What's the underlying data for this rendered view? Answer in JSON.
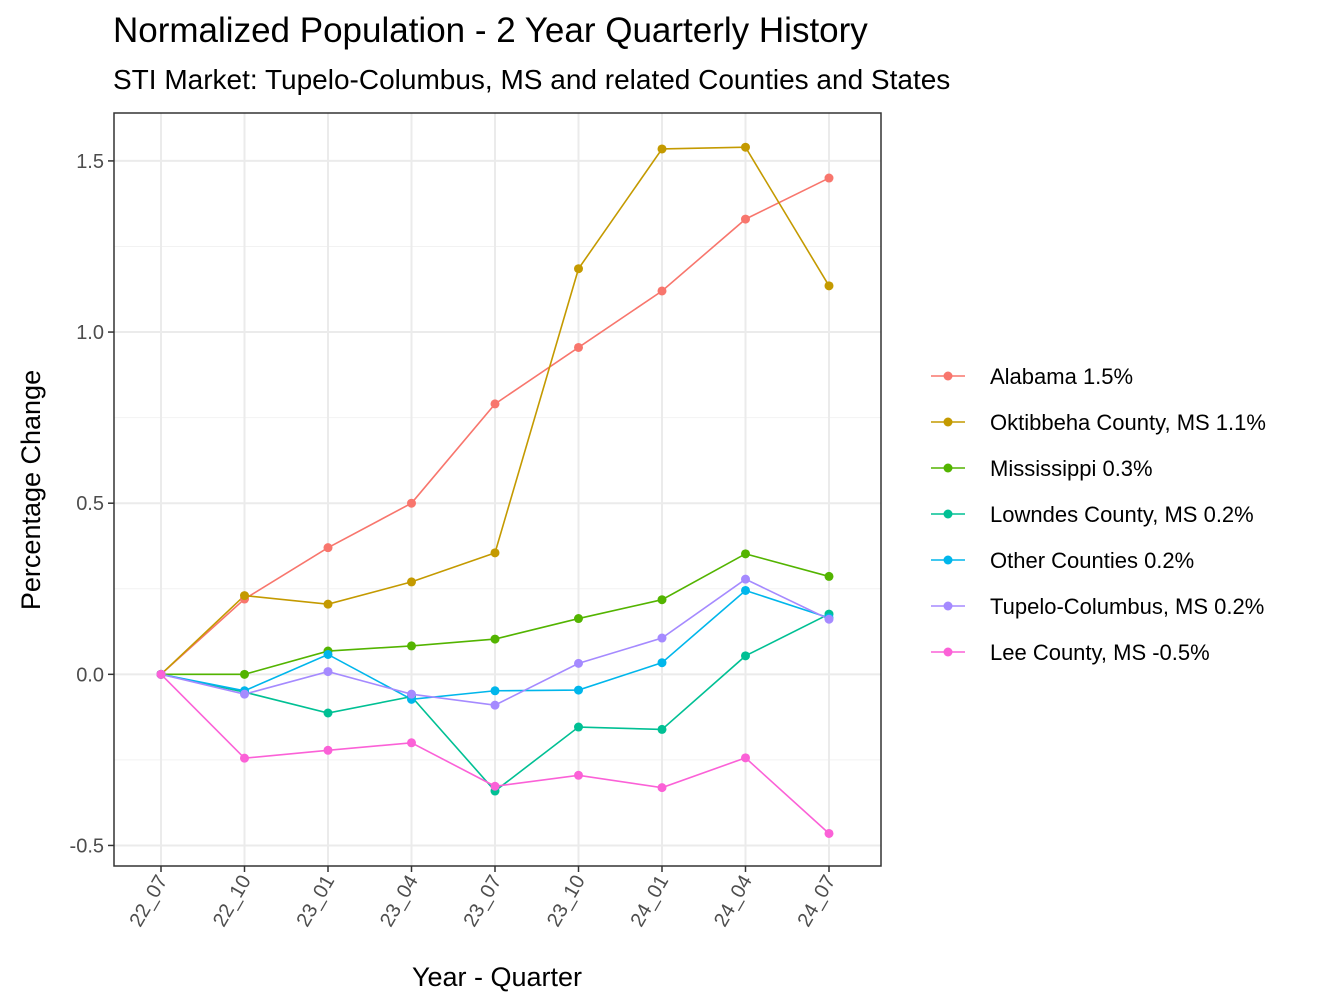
{
  "chart_data": {
    "type": "line",
    "title": "Normalized Population - 2 Year Quarterly History",
    "subtitle": "STI Market: Tupelo-Columbus, MS and related Counties and States",
    "xlabel": "Year - Quarter",
    "ylabel": "Percentage Change",
    "categories": [
      "22_07",
      "22_10",
      "23_01",
      "23_04",
      "23_07",
      "23_10",
      "24_01",
      "24_04",
      "24_07"
    ],
    "ylim": [
      -0.56,
      1.64
    ],
    "yticks": [
      -0.5,
      0.0,
      0.5,
      1.0,
      1.5
    ],
    "ytick_labels": [
      "-0.5",
      "0.0",
      "0.5",
      "1.0",
      "1.5"
    ],
    "grid": true,
    "legend_position": "right",
    "series": [
      {
        "name": "Alabama 1.5%",
        "color": "#F8766D",
        "values": [
          0.0,
          0.22,
          0.37,
          0.5,
          0.79,
          0.955,
          1.12,
          1.33,
          1.45
        ]
      },
      {
        "name": "Oktibbeha County, MS 1.1%",
        "color": "#C49A00",
        "values": [
          0.0,
          0.23,
          0.205,
          0.27,
          0.355,
          1.185,
          1.535,
          1.54,
          1.135
        ]
      },
      {
        "name": "Mississippi 0.3%",
        "color": "#53B400",
        "values": [
          0.0,
          0.0,
          0.068,
          0.083,
          0.103,
          0.163,
          0.218,
          0.352,
          0.286
        ]
      },
      {
        "name": "Lowndes County, MS 0.2%",
        "color": "#00C094",
        "values": [
          0.0,
          -0.052,
          -0.113,
          -0.065,
          -0.341,
          -0.154,
          -0.161,
          0.054,
          0.176
        ]
      },
      {
        "name": "Other Counties 0.2%",
        "color": "#00B6EB",
        "values": [
          0.0,
          -0.048,
          0.058,
          -0.073,
          -0.048,
          -0.046,
          0.034,
          0.245,
          0.165
        ]
      },
      {
        "name": "Tupelo-Columbus, MS 0.2%",
        "color": "#A58AFF",
        "values": [
          0.0,
          -0.058,
          0.008,
          -0.058,
          -0.09,
          0.032,
          0.106,
          0.278,
          0.161
        ]
      },
      {
        "name": "Lee County, MS -0.5%",
        "color": "#FB61D7",
        "values": [
          0.0,
          -0.245,
          -0.222,
          -0.2,
          -0.327,
          -0.295,
          -0.331,
          -0.244,
          -0.465
        ]
      }
    ]
  }
}
